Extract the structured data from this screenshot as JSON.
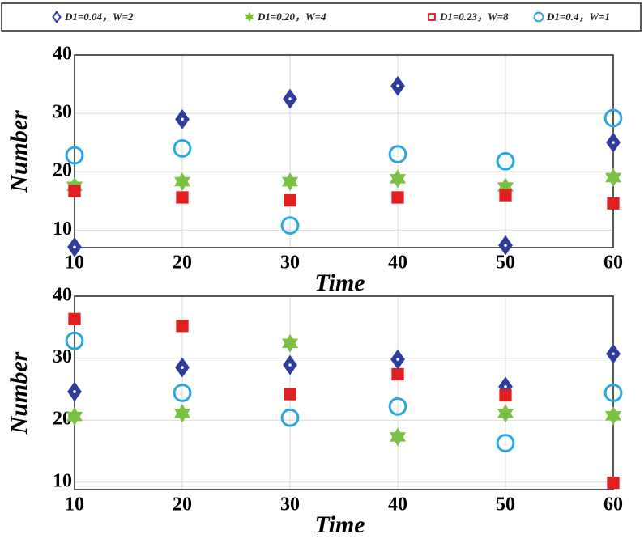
{
  "chart_data": [
    {
      "type": "scatter",
      "xlabel": "Time",
      "ylabel": "Number",
      "x": [
        10,
        20,
        30,
        40,
        50,
        60
      ],
      "xlim": [
        10,
        60
      ],
      "xticks": [
        10,
        20,
        30,
        40,
        50,
        60
      ],
      "ylim": [
        7,
        40
      ],
      "yticks": [
        10,
        20,
        30,
        40
      ],
      "grid": true,
      "series": [
        {
          "name": "D1=0.04，W=2",
          "color": "#2f3d9a",
          "marker": "diamond",
          "values": [
            7.1,
            29,
            32.5,
            34.7,
            7.4,
            25
          ]
        },
        {
          "name": "D1=0.20，W=4",
          "color": "#7ac143",
          "marker": "star",
          "values": [
            17.5,
            18.3,
            18.3,
            18.8,
            17.4,
            19
          ]
        },
        {
          "name": "D1=0.23，W=8",
          "color": "#e02020",
          "marker": "square",
          "values": [
            16.7,
            15.6,
            15.1,
            15.6,
            16,
            14.6
          ]
        },
        {
          "name": "D1=0.4，W=1",
          "color": "#29a8e0",
          "marker": "circle",
          "values": [
            22.8,
            24,
            10.8,
            23,
            21.8,
            29.2
          ]
        }
      ]
    },
    {
      "type": "scatter",
      "xlabel": "Time",
      "ylabel": "Number",
      "x": [
        10,
        20,
        30,
        40,
        50,
        60
      ],
      "xlim": [
        10,
        60
      ],
      "xticks": [
        10,
        20,
        30,
        40,
        50,
        60
      ],
      "ylim": [
        8.8,
        40
      ],
      "yticks": [
        10,
        20,
        30,
        40
      ],
      "grid": true,
      "series": [
        {
          "name": "D1=0.04，W=2",
          "color": "#2f3d9a",
          "marker": "diamond",
          "values": [
            24.6,
            28.5,
            28.9,
            29.8,
            25.4,
            30.7
          ]
        },
        {
          "name": "D1=0.20，W=4",
          "color": "#7ac143",
          "marker": "star",
          "values": [
            20.6,
            21.1,
            32.4,
            17.3,
            21.1,
            20.7
          ]
        },
        {
          "name": "D1=0.23，W=8",
          "color": "#e02020",
          "marker": "square",
          "values": [
            36.3,
            35.2,
            24.2,
            27.4,
            24,
            9.9
          ]
        },
        {
          "name": "D1=0.4，W=1",
          "color": "#29a8e0",
          "marker": "circle",
          "values": [
            32.8,
            24.4,
            20.4,
            22.2,
            16.3,
            24.4
          ]
        }
      ]
    }
  ]
}
